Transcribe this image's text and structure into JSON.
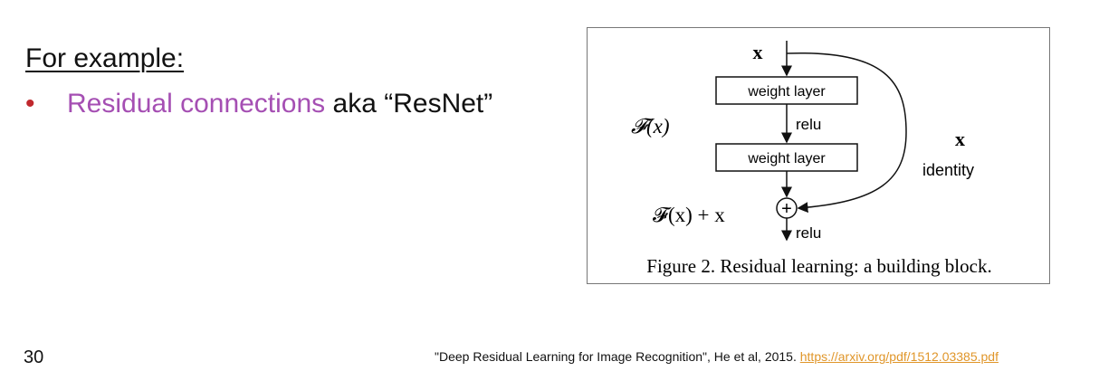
{
  "slide": {
    "heading": "For example:",
    "bullet": {
      "marker": "•",
      "highlight": "Residual connections",
      "rest": " aka “ResNet”"
    },
    "page_number": "30",
    "citation": {
      "text": "\"Deep Residual Learning for Image Recognition\", He et al, 2015. ",
      "link": "https://arxiv.org/pdf/1512.03385.pdf"
    }
  },
  "figure": {
    "input_label": "x",
    "layer1": "weight layer",
    "layer2": "weight layer",
    "relu_mid": "relu",
    "relu_out": "relu",
    "fx_label": "𝓕(x)",
    "sum_label": "𝓕(x) + x",
    "identity_x": "x",
    "identity_label": "identity",
    "plus_symbol": "+",
    "caption": "Figure 2. Residual learning: a building block."
  },
  "colors": {
    "accent_purple": "#a54fb3",
    "bullet_red": "#c0282d",
    "link_orange": "#e0962a"
  }
}
